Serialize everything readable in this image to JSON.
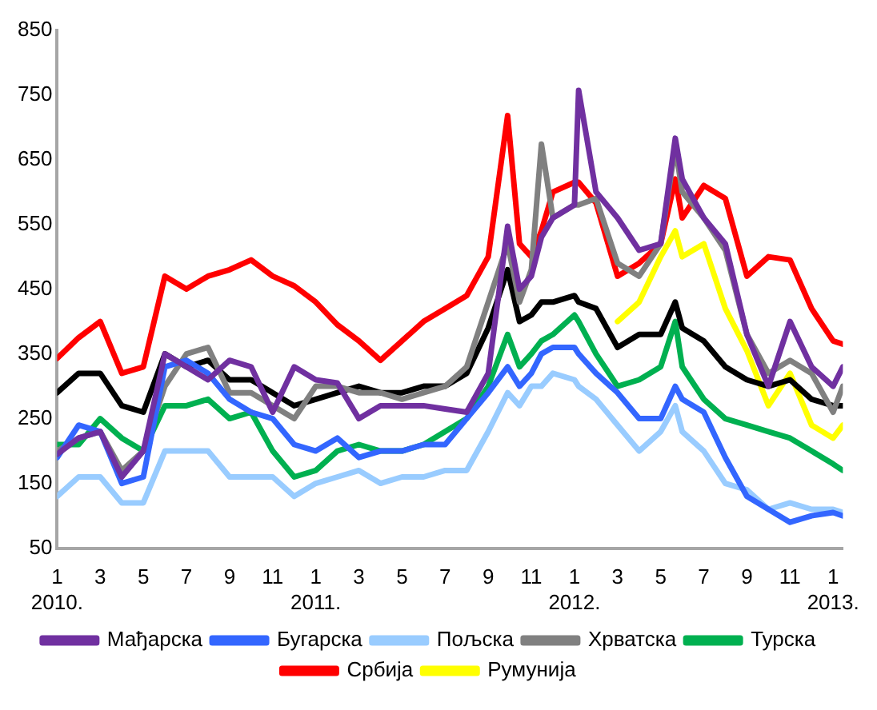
{
  "chart_data": {
    "type": "line",
    "x": [
      "2010-01-01",
      "2010-02-01",
      "2010-03-01",
      "2010-04-01",
      "2010-05-01",
      "2010-06-01",
      "2010-07-01",
      "2010-08-01",
      "2010-09-01",
      "2010-10-01",
      "2010-11-01",
      "2010-12-01",
      "2011-01-01",
      "2011-02-01",
      "2011-03-01",
      "2011-04-01",
      "2011-05-01",
      "2011-06-01",
      "2011-07-01",
      "2011-08-01",
      "2011-09-01",
      "2011-09-28",
      "2011-10-15",
      "2011-11-01",
      "2011-11-15",
      "2011-12-01",
      "2012-01-01",
      "2012-01-07",
      "2012-02-01",
      "2012-03-01",
      "2012-04-01",
      "2012-05-01",
      "2012-05-22",
      "2012-06-01",
      "2012-07-01",
      "2012-08-01",
      "2012-09-01",
      "2012-10-01",
      "2012-11-01",
      "2012-12-01",
      "2013-01-01",
      "2013-01-15"
    ],
    "series": [
      {
        "name": "Мађарска",
        "color": "#7030a0",
        "values": [
          195,
          220,
          230,
          160,
          200,
          350,
          330,
          310,
          340,
          330,
          260,
          330,
          310,
          305,
          250,
          270,
          270,
          270,
          265,
          260,
          320,
          547,
          450,
          470,
          530,
          560,
          580,
          757,
          600,
          560,
          510,
          520,
          683,
          620,
          560,
          520,
          380,
          300,
          400,
          330,
          300,
          330
        ]
      },
      {
        "name": "Бугарска",
        "color": "#3366ff",
        "values": [
          190,
          240,
          230,
          150,
          160,
          330,
          340,
          320,
          280,
          260,
          250,
          210,
          200,
          220,
          190,
          200,
          200,
          210,
          210,
          250,
          290,
          330,
          300,
          320,
          350,
          360,
          360,
          350,
          320,
          290,
          250,
          250,
          300,
          280,
          260,
          190,
          130,
          110,
          90,
          100,
          105,
          100
        ]
      },
      {
        "name": "Пољска",
        "color": "#99ccff",
        "values": [
          130,
          160,
          160,
          120,
          120,
          200,
          200,
          200,
          160,
          160,
          160,
          130,
          150,
          160,
          170,
          150,
          160,
          160,
          170,
          170,
          230,
          290,
          270,
          300,
          300,
          320,
          310,
          300,
          280,
          240,
          200,
          230,
          270,
          230,
          200,
          150,
          140,
          110,
          120,
          110,
          110,
          105
        ]
      },
      {
        "name": "Хрватска",
        "color": "#808080",
        "values": [
          200,
          220,
          230,
          170,
          200,
          300,
          350,
          360,
          290,
          290,
          270,
          250,
          300,
          300,
          290,
          290,
          280,
          290,
          300,
          330,
          430,
          520,
          430,
          480,
          674,
          560,
          580,
          580,
          590,
          490,
          470,
          520,
          670,
          600,
          560,
          510,
          380,
          320,
          340,
          320,
          260,
          300
        ]
      },
      {
        "color": "#000000",
        "values": [
          290,
          320,
          320,
          270,
          260,
          350,
          330,
          340,
          310,
          310,
          290,
          270,
          280,
          290,
          300,
          290,
          290,
          300,
          300,
          320,
          390,
          480,
          400,
          410,
          430,
          430,
          440,
          430,
          420,
          360,
          380,
          380,
          430,
          390,
          370,
          330,
          310,
          300,
          310,
          280,
          270,
          270
        ]
      },
      {
        "name": "Турска",
        "color": "#00b050",
        "values": [
          210,
          210,
          250,
          220,
          200,
          270,
          270,
          280,
          250,
          260,
          200,
          160,
          170,
          200,
          210,
          200,
          200,
          210,
          230,
          250,
          300,
          380,
          330,
          350,
          370,
          380,
          410,
          400,
          350,
          300,
          310,
          330,
          400,
          330,
          280,
          250,
          240,
          230,
          220,
          200,
          180,
          170
        ]
      },
      {
        "name": "Србија",
        "color": "#ff0000",
        "values": [
          343,
          375,
          400,
          320,
          330,
          470,
          450,
          470,
          480,
          495,
          470,
          455,
          430,
          395,
          370,
          340,
          370,
          400,
          420,
          440,
          500,
          718,
          520,
          500,
          540,
          600,
          615,
          615,
          583,
          470,
          490,
          520,
          620,
          560,
          610,
          590,
          470,
          500,
          495,
          420,
          370,
          365
        ]
      },
      {
        "name": "Румунија",
        "color": "#ffff00",
        "values": [
          null,
          null,
          null,
          null,
          null,
          null,
          null,
          null,
          null,
          null,
          null,
          null,
          null,
          null,
          null,
          null,
          null,
          null,
          null,
          null,
          null,
          null,
          null,
          null,
          null,
          null,
          null,
          null,
          null,
          400,
          430,
          500,
          540,
          500,
          520,
          420,
          355,
          270,
          320,
          240,
          220,
          240
        ]
      }
    ],
    "xlim": [
      "2010-01-01",
      "2013-01-15"
    ],
    "xticks": [
      {
        "value": "2010-01-01",
        "label": "1\n2010."
      },
      {
        "value": "2010-03-01",
        "label": "3"
      },
      {
        "value": "2010-05-01",
        "label": "5"
      },
      {
        "value": "2010-07-01",
        "label": "7"
      },
      {
        "value": "2010-09-01",
        "label": "9"
      },
      {
        "value": "2010-11-01",
        "label": "11"
      },
      {
        "value": "2011-01-01",
        "label": "1\n2011."
      },
      {
        "value": "2011-03-01",
        "label": "3"
      },
      {
        "value": "2011-05-01",
        "label": "5"
      },
      {
        "value": "2011-07-01",
        "label": "7"
      },
      {
        "value": "2011-09-01",
        "label": "9"
      },
      {
        "value": "2011-11-01",
        "label": "11"
      },
      {
        "value": "2012-01-01",
        "label": "1\n2012."
      },
      {
        "value": "2012-03-01",
        "label": "3"
      },
      {
        "value": "2012-05-01",
        "label": "5"
      },
      {
        "value": "2012-07-01",
        "label": "7"
      },
      {
        "value": "2012-09-01",
        "label": "9"
      },
      {
        "value": "2012-11-01",
        "label": "11"
      },
      {
        "value": "2013-01-01",
        "label": "1\n2013."
      }
    ],
    "ylim": [
      50,
      850
    ],
    "yticks": [
      50,
      150,
      250,
      350,
      450,
      550,
      650,
      750,
      850
    ],
    "grid": false,
    "legend": "bottom",
    "line_style": "solid",
    "marker": "none"
  }
}
